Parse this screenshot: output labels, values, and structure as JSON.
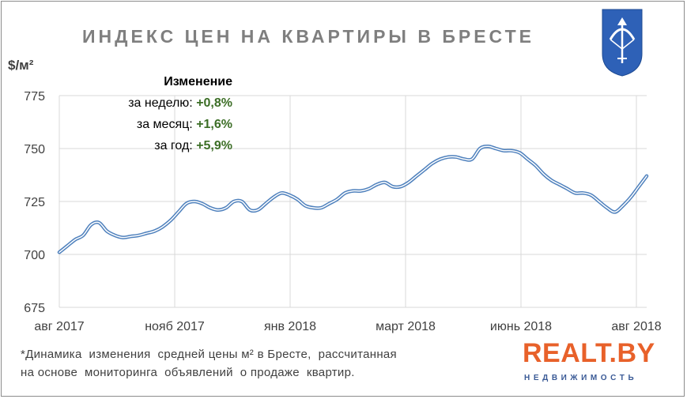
{
  "chart_data": {
    "type": "line",
    "title": "ИНДЕКС ЦЕН НА КВАРТИРЫ В БРЕСТЕ",
    "ylabel": "$/м²",
    "ylim": [
      675,
      775
    ],
    "yticks": [
      675,
      700,
      725,
      750,
      775
    ],
    "xticks": [
      "авг 2017",
      "нояб 2017",
      "янв 2018",
      "март 2018",
      "июнь 2018",
      "авг 2018"
    ],
    "grid": true,
    "color": "#4f81bd",
    "series": [
      {
        "values": [
          701,
          704,
          707,
          709,
          714,
          715,
          711,
          709,
          708,
          708.5,
          709,
          710,
          711,
          713,
          716,
          720,
          724,
          725,
          724,
          722,
          721,
          722,
          725,
          725,
          721,
          721,
          724,
          727,
          729,
          728,
          726,
          723,
          722,
          722,
          724,
          726,
          729,
          730,
          730,
          731,
          733,
          734,
          732,
          732,
          734,
          737,
          740,
          743,
          745,
          746,
          746,
          745,
          745,
          750,
          751,
          750,
          749,
          749,
          748,
          745,
          742,
          738,
          735,
          733,
          731,
          729,
          729,
          728,
          725,
          722,
          720,
          723,
          727,
          732,
          737
        ]
      }
    ]
  },
  "change": {
    "header": "Изменение",
    "rows": [
      {
        "label": "за неделю:",
        "value": "+0,8%"
      },
      {
        "label": "за месяц:",
        "value": "+1,6%"
      },
      {
        "label": "за год:",
        "value": "+5,9%"
      }
    ]
  },
  "footnote": {
    "line1": "*Динамика  изменения  средней цены м² в Бресте,  рассчитанная",
    "line2": "на основе  мониторинга  объявлений  о продаже  квартир."
  },
  "logo": {
    "main": "REALT.BY",
    "sub": "НЕДВИЖИМОСТЬ"
  },
  "colors": {
    "line": "#4f81bd",
    "change_value": "#3c6e26",
    "logo_orange": "#e8612a",
    "logo_blue": "#3a5a96",
    "coat_blue": "#2e61b7"
  }
}
